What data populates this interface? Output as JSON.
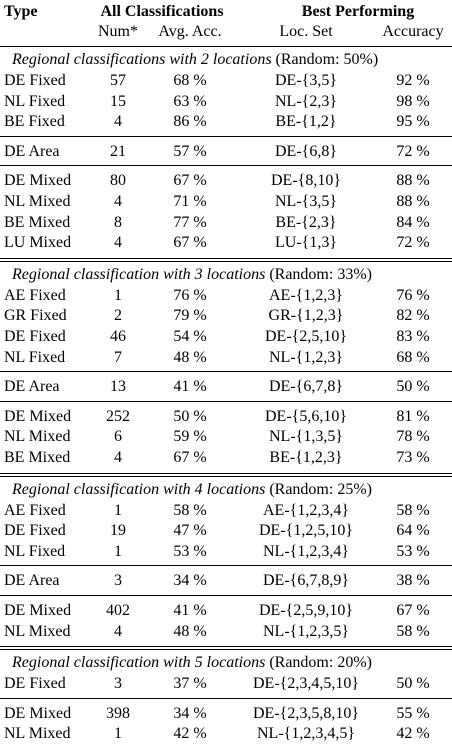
{
  "header": {
    "type": "Type",
    "all": "All Classifications",
    "best": "Best Performing",
    "num": "Num*",
    "avg": "Avg. Acc.",
    "loc": "Loc. Set",
    "acc": "Accuracy"
  },
  "sections": [
    {
      "title": "Regional classifications with 2 locations",
      "random": "(Random: 50%)",
      "groups": [
        [
          [
            "DE Fixed",
            57,
            "68 %",
            "DE-{3,5}",
            "92 %"
          ],
          [
            "NL Fixed",
            15,
            "63 %",
            "NL-{2,3}",
            "98 %"
          ],
          [
            "BE Fixed",
            4,
            "86 %",
            "BE-{1,2}",
            "95 %"
          ]
        ],
        [
          [
            "DE Area",
            21,
            "57 %",
            "DE-{6,8}",
            "72 %"
          ]
        ],
        [
          [
            "DE Mixed",
            80,
            "67 %",
            "DE-{8,10}",
            "88 %"
          ],
          [
            "NL Mixed",
            4,
            "71 %",
            "NL-{3,5}",
            "88 %"
          ],
          [
            "BE Mixed",
            8,
            "77 %",
            "BE-{2,3}",
            "84 %"
          ],
          [
            "LU Mixed",
            4,
            "67 %",
            "LU-{1,3}",
            "72 %"
          ]
        ]
      ]
    },
    {
      "title": "Regional classification with 3 locations",
      "random": "(Random: 33%)",
      "groups": [
        [
          [
            "AE Fixed",
            1,
            "76 %",
            "AE-{1,2,3}",
            "76 %"
          ],
          [
            "GR Fixed",
            2,
            "79 %",
            "GR-{1,2,3}",
            "82 %"
          ],
          [
            "DE Fixed",
            46,
            "54 %",
            "DE-{2,5,10}",
            "83 %"
          ],
          [
            "NL Fixed",
            7,
            "48 %",
            "NL-{1,2,3}",
            "68 %"
          ]
        ],
        [
          [
            "DE Area",
            13,
            "41 %",
            "DE-{6,7,8}",
            "50 %"
          ]
        ],
        [
          [
            "DE Mixed",
            252,
            "50 %",
            "DE-{5,6,10}",
            "81 %"
          ],
          [
            "NL Mixed",
            6,
            "59 %",
            "NL-{1,3,5}",
            "78 %"
          ],
          [
            "BE Mixed",
            4,
            "67 %",
            "BE-{1,2,3}",
            "73 %"
          ]
        ]
      ]
    },
    {
      "title": "Regional classification with 4 locations",
      "random": "(Random: 25%)",
      "groups": [
        [
          [
            "AE Fixed",
            1,
            "58 %",
            "AE-{1,2,3,4}",
            "58 %"
          ],
          [
            "DE Fixed",
            19,
            "47 %",
            "DE-{1,2,5,10}",
            "64 %"
          ],
          [
            "NL Fixed",
            1,
            "53 %",
            "NL-{1,2,3,4}",
            "53 %"
          ]
        ],
        [
          [
            "DE Area",
            3,
            "34 %",
            "DE-{6,7,8,9}",
            "38 %"
          ]
        ],
        [
          [
            "DE Mixed",
            402,
            "41 %",
            "DE-{2,5,9,10}",
            "67 %"
          ],
          [
            "NL Mixed",
            4,
            "48 %",
            "NL-{1,2,3,5}",
            "58 %"
          ]
        ]
      ]
    },
    {
      "title": "Regional classification with 5 locations",
      "random": "(Random: 20%)",
      "groups": [
        [
          [
            "DE Fixed",
            3,
            "37 %",
            "DE-{2,3,4,5,10}",
            "50 %"
          ]
        ],
        [
          [
            "DE Mixed",
            398,
            "34 %",
            "DE-{2,3,5,8,10}",
            "55 %"
          ],
          [
            "NL Mixed",
            1,
            "42 %",
            "NL-{1,2,3,4,5}",
            "42 %"
          ]
        ]
      ]
    }
  ]
}
